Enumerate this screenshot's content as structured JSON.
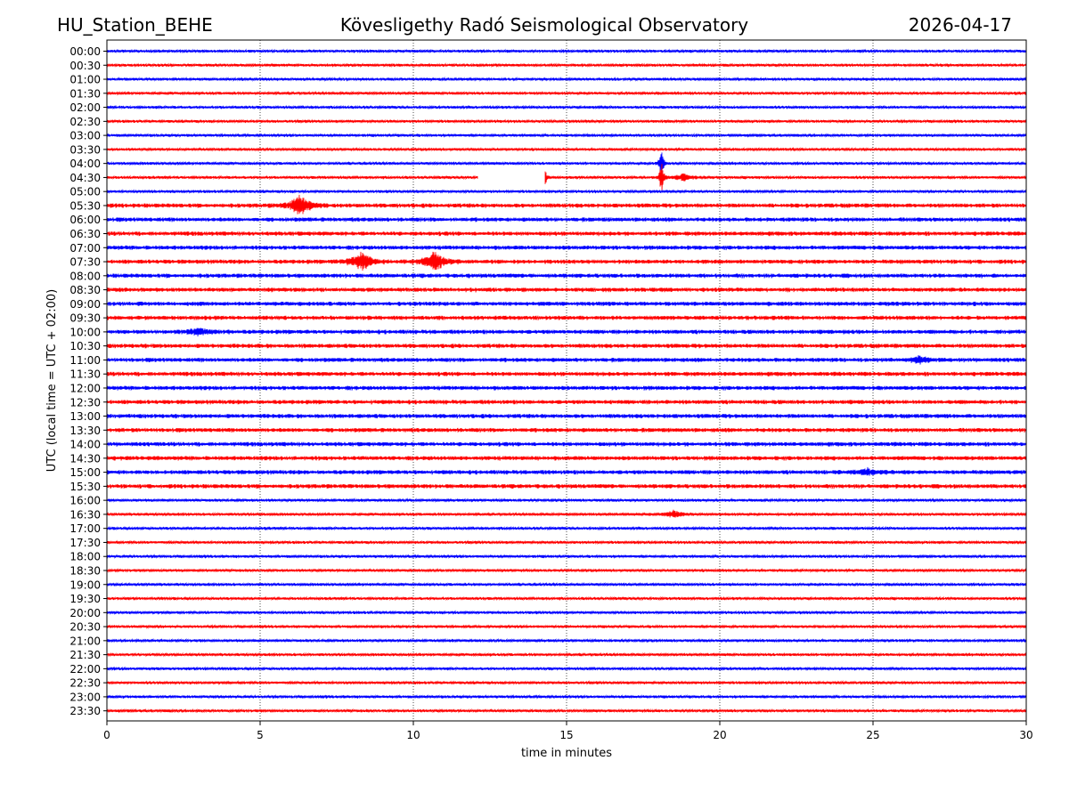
{
  "header": {
    "station": "HU_Station_BEHE",
    "title": "Kövesligethy Radó Seismological Observatory",
    "date": "2026-04-17"
  },
  "chart_data": {
    "type": "line",
    "title": "Kövesligethy Radó Seismological Observatory",
    "xlabel": "time in minutes",
    "ylabel": "UTC (local time = UTC + 02:00)",
    "xlim": [
      0,
      30
    ],
    "x_ticks": [
      "0",
      "5",
      "10",
      "15",
      "20",
      "25",
      "30"
    ],
    "grid": "vertical dotted lines at 5-minute intervals",
    "row_labels": [
      "00:00",
      "00:30",
      "01:00",
      "01:30",
      "02:00",
      "02:30",
      "03:00",
      "03:30",
      "04:00",
      "04:30",
      "05:00",
      "05:30",
      "06:00",
      "06:30",
      "07:00",
      "07:30",
      "08:00",
      "08:30",
      "09:00",
      "09:30",
      "10:00",
      "10:30",
      "11:00",
      "11:30",
      "12:00",
      "12:30",
      "13:00",
      "13:30",
      "14:00",
      "14:30",
      "15:00",
      "15:30",
      "16:00",
      "16:30",
      "17:00",
      "17:30",
      "18:00",
      "18:30",
      "19:00",
      "19:30",
      "20:00",
      "20:30",
      "21:00",
      "21:30",
      "22:00",
      "22:30",
      "23:00",
      "23:30"
    ],
    "colors": {
      "even_rows": "#0000ff",
      "odd_rows": "#ff0000"
    },
    "events": [
      {
        "row": "04:00",
        "minute": 18.1,
        "amplitude": "large spike"
      },
      {
        "row": "04:30",
        "minute": 14.3,
        "amplitude": "spike"
      },
      {
        "row": "04:30",
        "minute": 18.1,
        "amplitude": "large spike"
      },
      {
        "row": "04:30",
        "minute": 18.8,
        "amplitude": "small burst"
      },
      {
        "row": "05:30",
        "minute": 6.3,
        "amplitude": "burst"
      },
      {
        "row": "07:30",
        "minute": 8.3,
        "amplitude": "burst"
      },
      {
        "row": "07:30",
        "minute": 10.7,
        "amplitude": "burst"
      },
      {
        "row": "10:00",
        "minute": 3.0,
        "amplitude": "small burst"
      },
      {
        "row": "11:00",
        "minute": 26.5,
        "amplitude": "small burst"
      },
      {
        "row": "15:00",
        "minute": 24.8,
        "amplitude": "small burst"
      },
      {
        "row": "16:30",
        "minute": 18.5,
        "amplitude": "small burst"
      }
    ],
    "gaps": [
      {
        "row": "04:30",
        "from_minute": 12.1,
        "to_minute": 14.3
      }
    ]
  }
}
